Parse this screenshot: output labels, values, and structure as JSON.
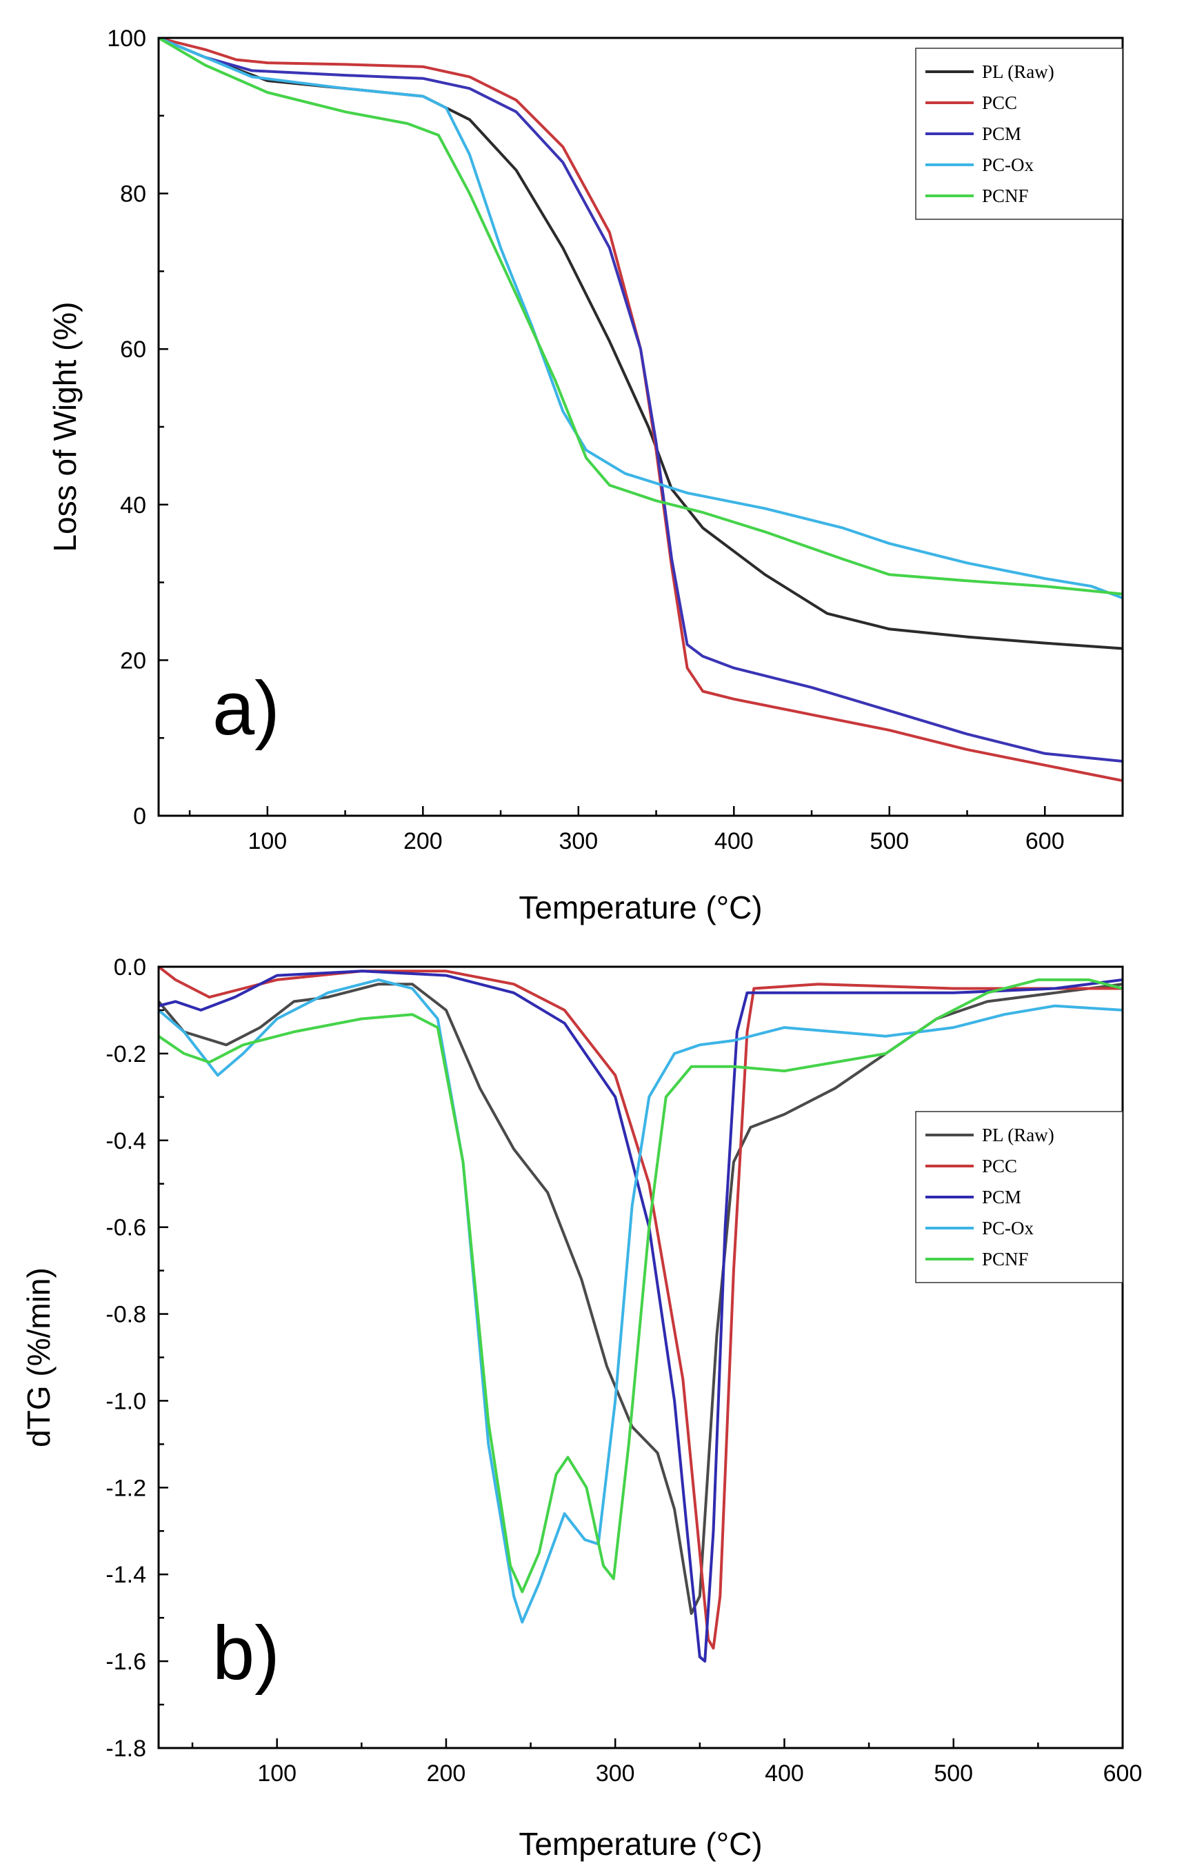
{
  "chart_data": [
    {
      "type": "line",
      "panel_label": "a)",
      "xlabel": "Temperature (°C)",
      "ylabel": "Loss of Wight (%)",
      "xlim": [
        30,
        650
      ],
      "ylim": [
        0,
        100
      ],
      "xticks": [
        100,
        200,
        300,
        400,
        500,
        600
      ],
      "yticks": [
        0,
        20,
        40,
        60,
        80,
        100
      ],
      "legend_position": "top-right",
      "series": [
        {
          "name": "PL (Raw)",
          "color": "#2b2b2b",
          "points": [
            [
              30,
              100
            ],
            [
              60,
              97.5
            ],
            [
              100,
              94.5
            ],
            [
              150,
              93.5
            ],
            [
              200,
              92.5
            ],
            [
              230,
              89.5
            ],
            [
              260,
              83
            ],
            [
              290,
              73
            ],
            [
              320,
              61
            ],
            [
              345,
              50
            ],
            [
              360,
              42
            ],
            [
              380,
              37
            ],
            [
              420,
              31
            ],
            [
              460,
              26
            ],
            [
              500,
              24
            ],
            [
              550,
              23
            ],
            [
              600,
              22.2
            ],
            [
              650,
              21.5
            ]
          ]
        },
        {
          "name": "PCC",
          "color": "#c8383b",
          "points": [
            [
              30,
              100
            ],
            [
              60,
              98.5
            ],
            [
              80,
              97.2
            ],
            [
              100,
              96.8
            ],
            [
              150,
              96.6
            ],
            [
              200,
              96.3
            ],
            [
              230,
              95
            ],
            [
              260,
              92
            ],
            [
              290,
              86
            ],
            [
              320,
              75
            ],
            [
              340,
              60
            ],
            [
              350,
              47
            ],
            [
              360,
              32
            ],
            [
              370,
              19
            ],
            [
              380,
              16
            ],
            [
              400,
              15
            ],
            [
              450,
              13
            ],
            [
              500,
              11
            ],
            [
              550,
              8.5
            ],
            [
              600,
              6.5
            ],
            [
              650,
              4.5
            ]
          ]
        },
        {
          "name": "PCM",
          "color": "#3a34b5",
          "points": [
            [
              30,
              100
            ],
            [
              60,
              97.5
            ],
            [
              90,
              95.8
            ],
            [
              150,
              95.2
            ],
            [
              200,
              94.8
            ],
            [
              230,
              93.5
            ],
            [
              260,
              90.5
            ],
            [
              290,
              84
            ],
            [
              320,
              73
            ],
            [
              340,
              60
            ],
            [
              350,
              48
            ],
            [
              360,
              33
            ],
            [
              370,
              22
            ],
            [
              380,
              20.5
            ],
            [
              400,
              19
            ],
            [
              450,
              16.5
            ],
            [
              500,
              13.5
            ],
            [
              550,
              10.5
            ],
            [
              600,
              8
            ],
            [
              650,
              7
            ]
          ]
        },
        {
          "name": "PC-Ox",
          "color": "#3cb4e6",
          "points": [
            [
              30,
              100
            ],
            [
              60,
              97.5
            ],
            [
              90,
              95
            ],
            [
              150,
              93.5
            ],
            [
              200,
              92.5
            ],
            [
              215,
              91
            ],
            [
              230,
              85
            ],
            [
              250,
              73
            ],
            [
              270,
              63
            ],
            [
              290,
              52
            ],
            [
              305,
              47
            ],
            [
              330,
              44
            ],
            [
              370,
              41.5
            ],
            [
              420,
              39.5
            ],
            [
              470,
              37
            ],
            [
              500,
              35
            ],
            [
              550,
              32.5
            ],
            [
              600,
              30.5
            ],
            [
              630,
              29.5
            ],
            [
              650,
              28
            ]
          ]
        },
        {
          "name": "PCNF",
          "color": "#45d34a",
          "points": [
            [
              30,
              100
            ],
            [
              60,
              96.5
            ],
            [
              100,
              93
            ],
            [
              150,
              90.5
            ],
            [
              190,
              89
            ],
            [
              210,
              87.5
            ],
            [
              230,
              80
            ],
            [
              260,
              67
            ],
            [
              285,
              56
            ],
            [
              305,
              46
            ],
            [
              320,
              42.5
            ],
            [
              350,
              40.5
            ],
            [
              380,
              39
            ],
            [
              420,
              36.5
            ],
            [
              470,
              33
            ],
            [
              500,
              31
            ],
            [
              550,
              30.2
            ],
            [
              600,
              29.5
            ],
            [
              650,
              28.5
            ]
          ]
        }
      ]
    },
    {
      "type": "line",
      "panel_label": "b)",
      "xlabel": "Temperature (°C)",
      "ylabel": "dTG (%/min)",
      "xlim": [
        30,
        600
      ],
      "ylim": [
        -1.8,
        0.0
      ],
      "xticks": [
        100,
        200,
        300,
        400,
        500,
        600
      ],
      "yticks": [
        0.0,
        -0.2,
        -0.4,
        -0.6,
        -0.8,
        -1.0,
        -1.2,
        -1.4,
        -1.6,
        -1.8
      ],
      "legend_position": "right",
      "series": [
        {
          "name": "PL (Raw)",
          "color": "#4a4a4a",
          "points": [
            [
              30,
              -0.08
            ],
            [
              45,
              -0.15
            ],
            [
              70,
              -0.18
            ],
            [
              90,
              -0.14
            ],
            [
              110,
              -0.08
            ],
            [
              130,
              -0.07
            ],
            [
              160,
              -0.04
            ],
            [
              180,
              -0.04
            ],
            [
              200,
              -0.1
            ],
            [
              220,
              -0.28
            ],
            [
              240,
              -0.42
            ],
            [
              260,
              -0.52
            ],
            [
              280,
              -0.72
            ],
            [
              295,
              -0.92
            ],
            [
              310,
              -1.06
            ],
            [
              325,
              -1.12
            ],
            [
              335,
              -1.25
            ],
            [
              345,
              -1.49
            ],
            [
              350,
              -1.45
            ],
            [
              360,
              -0.85
            ],
            [
              370,
              -0.45
            ],
            [
              380,
              -0.37
            ],
            [
              400,
              -0.34
            ],
            [
              430,
              -0.28
            ],
            [
              460,
              -0.2
            ],
            [
              490,
              -0.12
            ],
            [
              520,
              -0.08
            ],
            [
              560,
              -0.06
            ],
            [
              600,
              -0.04
            ]
          ]
        },
        {
          "name": "PCC",
          "color": "#c8383b",
          "points": [
            [
              30,
              0.0
            ],
            [
              40,
              -0.03
            ],
            [
              60,
              -0.07
            ],
            [
              80,
              -0.05
            ],
            [
              100,
              -0.03
            ],
            [
              150,
              -0.01
            ],
            [
              200,
              -0.01
            ],
            [
              240,
              -0.04
            ],
            [
              270,
              -0.1
            ],
            [
              300,
              -0.25
            ],
            [
              320,
              -0.5
            ],
            [
              340,
              -0.95
            ],
            [
              350,
              -1.35
            ],
            [
              355,
              -1.55
            ],
            [
              358,
              -1.57
            ],
            [
              362,
              -1.45
            ],
            [
              370,
              -0.7
            ],
            [
              378,
              -0.15
            ],
            [
              382,
              -0.05
            ],
            [
              420,
              -0.04
            ],
            [
              500,
              -0.05
            ],
            [
              560,
              -0.05
            ],
            [
              600,
              -0.05
            ]
          ]
        },
        {
          "name": "PCM",
          "color": "#2f2bb0",
          "points": [
            [
              30,
              -0.09
            ],
            [
              40,
              -0.08
            ],
            [
              55,
              -0.1
            ],
            [
              75,
              -0.07
            ],
            [
              100,
              -0.02
            ],
            [
              150,
              -0.01
            ],
            [
              200,
              -0.02
            ],
            [
              240,
              -0.06
            ],
            [
              270,
              -0.13
            ],
            [
              300,
              -0.3
            ],
            [
              320,
              -0.6
            ],
            [
              335,
              -1.0
            ],
            [
              345,
              -1.4
            ],
            [
              350,
              -1.59
            ],
            [
              353,
              -1.6
            ],
            [
              358,
              -1.3
            ],
            [
              365,
              -0.6
            ],
            [
              372,
              -0.15
            ],
            [
              378,
              -0.06
            ],
            [
              420,
              -0.06
            ],
            [
              500,
              -0.06
            ],
            [
              560,
              -0.05
            ],
            [
              600,
              -0.03
            ]
          ]
        },
        {
          "name": "PC-Ox",
          "color": "#3cb4e6",
          "points": [
            [
              30,
              -0.1
            ],
            [
              45,
              -0.15
            ],
            [
              65,
              -0.25
            ],
            [
              80,
              -0.2
            ],
            [
              100,
              -0.12
            ],
            [
              130,
              -0.06
            ],
            [
              160,
              -0.03
            ],
            [
              180,
              -0.05
            ],
            [
              195,
              -0.12
            ],
            [
              210,
              -0.45
            ],
            [
              225,
              -1.1
            ],
            [
              240,
              -1.45
            ],
            [
              245,
              -1.51
            ],
            [
              255,
              -1.42
            ],
            [
              270,
              -1.26
            ],
            [
              282,
              -1.32
            ],
            [
              290,
              -1.33
            ],
            [
              300,
              -1.0
            ],
            [
              310,
              -0.55
            ],
            [
              320,
              -0.3
            ],
            [
              335,
              -0.2
            ],
            [
              350,
              -0.18
            ],
            [
              370,
              -0.17
            ],
            [
              400,
              -0.14
            ],
            [
              430,
              -0.15
            ],
            [
              460,
              -0.16
            ],
            [
              500,
              -0.14
            ],
            [
              530,
              -0.11
            ],
            [
              560,
              -0.09
            ],
            [
              600,
              -0.1
            ]
          ]
        },
        {
          "name": "PCNF",
          "color": "#45d34a",
          "points": [
            [
              30,
              -0.16
            ],
            [
              45,
              -0.2
            ],
            [
              60,
              -0.22
            ],
            [
              80,
              -0.18
            ],
            [
              110,
              -0.15
            ],
            [
              150,
              -0.12
            ],
            [
              180,
              -0.11
            ],
            [
              195,
              -0.14
            ],
            [
              210,
              -0.45
            ],
            [
              225,
              -1.05
            ],
            [
              238,
              -1.38
            ],
            [
              245,
              -1.44
            ],
            [
              255,
              -1.35
            ],
            [
              265,
              -1.17
            ],
            [
              272,
              -1.13
            ],
            [
              283,
              -1.2
            ],
            [
              293,
              -1.38
            ],
            [
              299,
              -1.41
            ],
            [
              308,
              -1.1
            ],
            [
              320,
              -0.6
            ],
            [
              330,
              -0.3
            ],
            [
              345,
              -0.23
            ],
            [
              370,
              -0.23
            ],
            [
              400,
              -0.24
            ],
            [
              430,
              -0.22
            ],
            [
              460,
              -0.2
            ],
            [
              490,
              -0.12
            ],
            [
              520,
              -0.06
            ],
            [
              550,
              -0.03
            ],
            [
              580,
              -0.03
            ],
            [
              600,
              -0.05
            ]
          ]
        }
      ]
    }
  ]
}
